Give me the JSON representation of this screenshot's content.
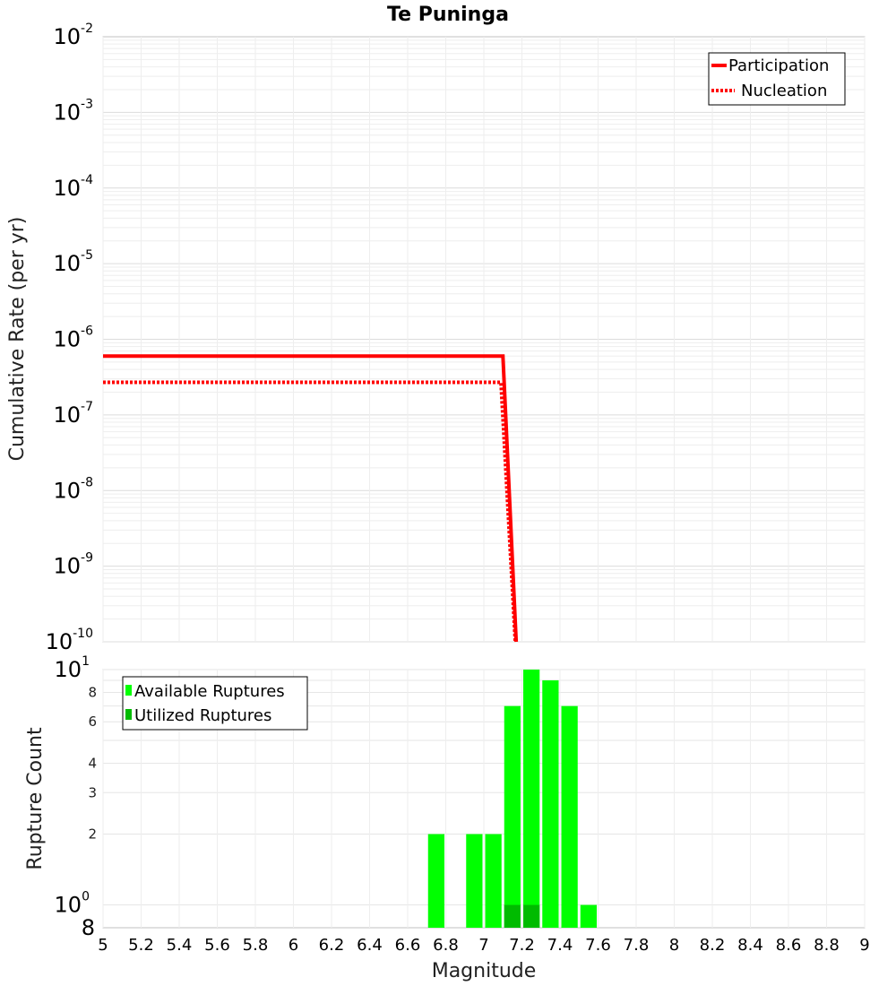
{
  "chart_data": [
    {
      "type": "line",
      "title": "Te Puninga",
      "ylabel": "Cumulative Rate (per yr)",
      "xlabel": "",
      "xlim": [
        5,
        9
      ],
      "ylim": [
        1e-10,
        0.01
      ],
      "yscale": "log",
      "grid": true,
      "legend_position": "top-right",
      "y_tick_exponents": [
        -10,
        -9,
        -8,
        -7,
        -6,
        -5,
        -4,
        -3,
        -2
      ],
      "series": [
        {
          "name": "Participation",
          "style": "solid",
          "color": "#ff0000",
          "points": [
            [
              5.0,
              6e-07
            ],
            [
              7.1,
              6e-07
            ],
            [
              7.17,
              1e-10
            ]
          ]
        },
        {
          "name": "Nucleation",
          "style": "dotted",
          "color": "#ff0000",
          "points": [
            [
              5.0,
              2.7e-07
            ],
            [
              7.09,
              2.7e-07
            ],
            [
              7.165,
              1e-10
            ]
          ]
        }
      ]
    },
    {
      "type": "bar",
      "title": "",
      "xlabel": "Magnitude",
      "ylabel": "Rupture Count",
      "xlim": [
        5,
        9
      ],
      "ylim": [
        0.8,
        10
      ],
      "yscale": "log",
      "grid": true,
      "legend_position": "top-left",
      "x_ticks": [
        "5",
        "5.2",
        "5.4",
        "5.6",
        "5.8",
        "6",
        "6.2",
        "6.4",
        "6.6",
        "6.8",
        "7",
        "7.2",
        "7.4",
        "7.6",
        "7.8",
        "8",
        "8.2",
        "8.4",
        "8.6",
        "8.8",
        "9"
      ],
      "y_ticks_minor": [
        "2",
        "3",
        "4",
        "6",
        "8"
      ],
      "y_ticks_major": [
        {
          "base": "10",
          "exp": "0"
        },
        {
          "base": "10",
          "exp": "1"
        }
      ],
      "y_tick_bottom": "8",
      "bin_width": 0.1,
      "series": [
        {
          "name": "Available Ruptures",
          "color": "#00ff00",
          "bins": [
            {
              "x": 6.7,
              "value": 2
            },
            {
              "x": 6.9,
              "value": 2
            },
            {
              "x": 7.0,
              "value": 2
            },
            {
              "x": 7.1,
              "value": 7
            },
            {
              "x": 7.2,
              "value": 10
            },
            {
              "x": 7.3,
              "value": 9
            },
            {
              "x": 7.4,
              "value": 7
            },
            {
              "x": 7.5,
              "value": 1
            }
          ]
        },
        {
          "name": "Utilized Ruptures",
          "color": "#00bb00",
          "bins": [
            {
              "x": 7.1,
              "value": 1
            },
            {
              "x": 7.2,
              "value": 1
            }
          ]
        }
      ]
    }
  ]
}
